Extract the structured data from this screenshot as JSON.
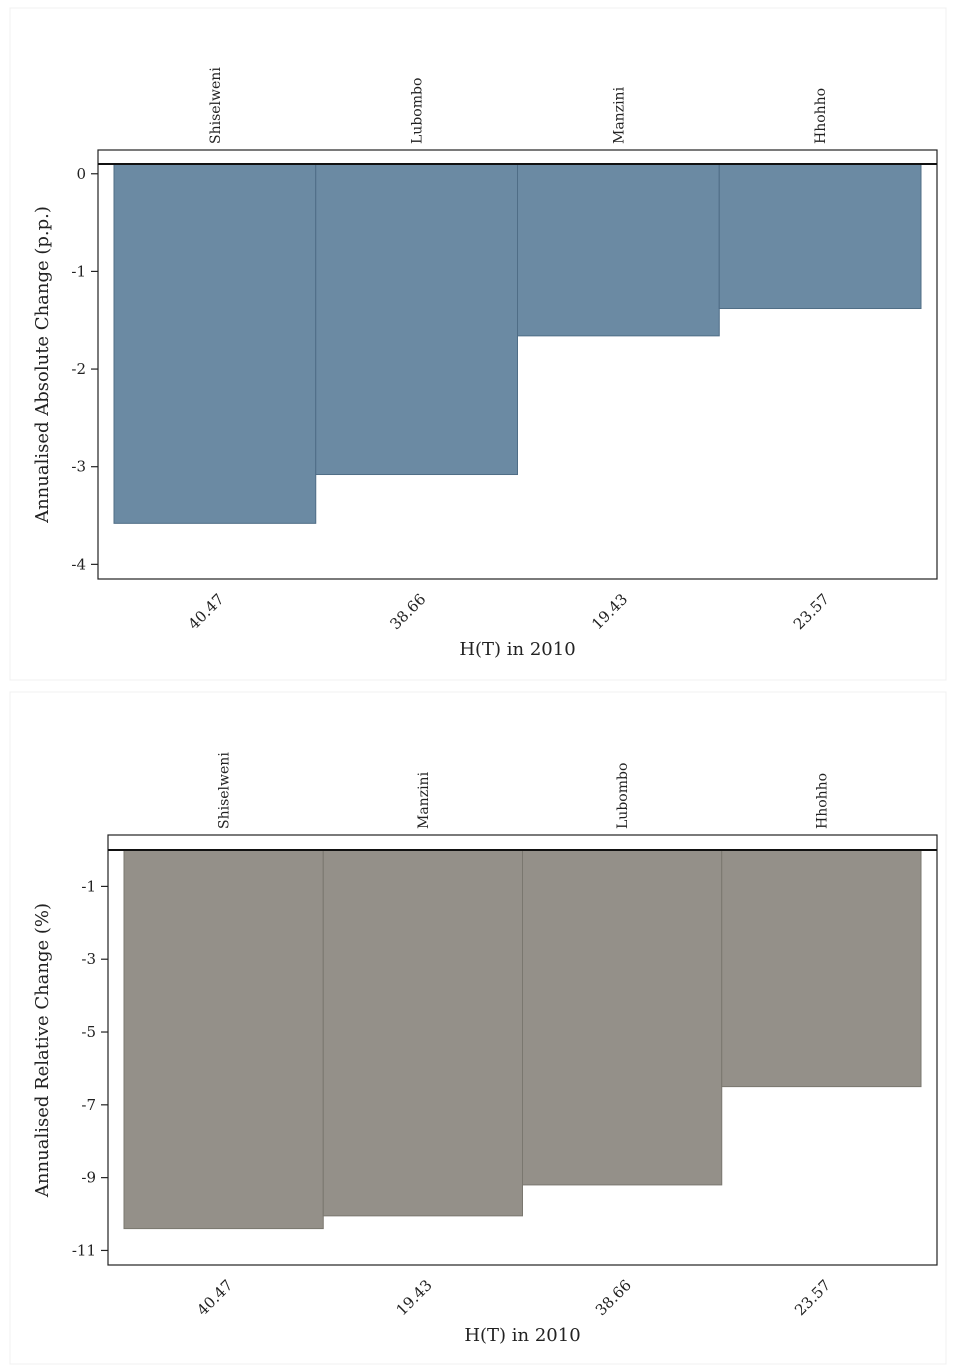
{
  "chart_data": [
    {
      "type": "bar",
      "bar_color": "#6b8aa3",
      "bar_stroke": "#4f6d86",
      "ylabel": "Annualised Absolute Change (p.p.)",
      "xlabel": "H(T) in 2010",
      "ylim": [
        -4.15,
        0.1
      ],
      "yticks": [
        0,
        -1,
        -2,
        -3,
        -4
      ],
      "categories": [
        "Shiselweni",
        "Lubombo",
        "Manzini",
        "Hhohho"
      ],
      "tick_labels": [
        "40.47",
        "38.66",
        "19.43",
        "23.57"
      ],
      "values": [
        -3.58,
        -3.08,
        -1.66,
        -1.38
      ]
    },
    {
      "type": "bar",
      "bar_color": "#949089",
      "bar_stroke": "#7a776f",
      "ylabel": "Annualised Relative Change (%)",
      "xlabel": "H(T) in 2010",
      "ylim": [
        -11.4,
        0
      ],
      "yticks": [
        -1,
        -3,
        -5,
        -7,
        -9,
        -11
      ],
      "categories": [
        "Shiselweni",
        "Manzini",
        "Lubombo",
        "Hhohho"
      ],
      "tick_labels": [
        "40.47",
        "19.43",
        "38.66",
        "23.57"
      ],
      "values": [
        -10.4,
        -10.05,
        -9.2,
        -6.5
      ]
    }
  ]
}
